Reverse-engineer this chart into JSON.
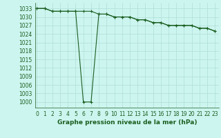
{
  "title": "Graphe pression niveau de la mer (hPa)",
  "background_color": "#cdf5ef",
  "grid_color": "#aeddd7",
  "line_color": "#1a5e20",
  "x_values": [
    0,
    1,
    2,
    3,
    4,
    5,
    6,
    7,
    8,
    9,
    10,
    11,
    12,
    13,
    14,
    15,
    16,
    17,
    18,
    19,
    20,
    21,
    22,
    23
  ],
  "line1_y": [
    1033,
    1033,
    1032,
    1032,
    1032,
    1032,
    1032,
    1032,
    1031,
    1031,
    1030,
    1030,
    1030,
    1029,
    1029,
    1028,
    1028,
    1027,
    1027,
    1027,
    1027,
    1026,
    1026,
    1025
  ],
  "line2_y": [
    1033,
    1033,
    1032,
    1032,
    1032,
    1032,
    1000,
    1000,
    1031,
    1031,
    1030,
    1030,
    1030,
    1029,
    1029,
    1028,
    1028,
    1027,
    1027,
    1027,
    1027,
    1026,
    1026,
    1025
  ],
  "ylim_min": 998,
  "ylim_max": 1035,
  "yticks": [
    1000,
    1003,
    1006,
    1009,
    1012,
    1015,
    1018,
    1021,
    1024,
    1027,
    1030,
    1033
  ],
  "xlim_min": -0.2,
  "xlim_max": 23.5,
  "xticks": [
    0,
    1,
    2,
    3,
    4,
    5,
    6,
    7,
    8,
    9,
    10,
    11,
    12,
    13,
    14,
    15,
    16,
    17,
    18,
    19,
    20,
    21,
    22,
    23
  ],
  "xlabels": [
    "0",
    "1",
    "2",
    "3",
    "4",
    "5",
    "6",
    "7",
    "8",
    "9",
    "10",
    "11",
    "12",
    "13",
    "14",
    "15",
    "16",
    "17",
    "18",
    "19",
    "20",
    "21",
    "22",
    "23"
  ],
  "tick_fontsize": 5.5,
  "xlabel_fontsize": 6.5,
  "line_width": 0.8,
  "marker_size": 3.5
}
